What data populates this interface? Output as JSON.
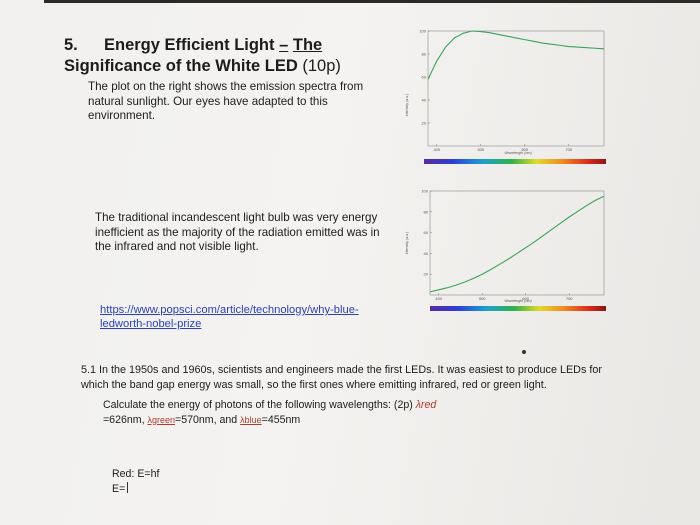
{
  "section": {
    "number": "5.",
    "title_plain": "Energy Efficient Light",
    "title_dash": "–",
    "title_underlined": "The",
    "title_line2_bold": "Significance of the White LED",
    "title_points": "(10p)"
  },
  "paragraph1": "The plot on the right shows the emission spectra from natural sunlight. Our eyes have adapted to this environment.",
  "paragraph2": "The traditional incandescent light bulb was very energy inefficient as the majority of the radiation emitted was in the infrared and not visible light.",
  "link": {
    "text": "https://www.popsci.com/article/technology/why-blue-ledworth-nobel-prize"
  },
  "question": {
    "text": "5.1 In the 1950s and 1960s, scientists and engineers made the first LEDs. It was easiest to produce LEDs for which the band gap energy was small, so the first ones where emitting infrared, red or green light.",
    "task_prefix": "Calculate the energy of photons of the following wavelengths: (2p)",
    "lambda_red": "λred",
    "red_value": "=626nm,",
    "lambda_green": "λgreen",
    "green_value": "=570nm",
    "and": ", and",
    "lambda_blue": "λblue",
    "blue_value": "=455nm"
  },
  "answer": {
    "line1": "Red: E=hf",
    "line2": "E="
  },
  "chart_data": [
    {
      "type": "line",
      "title": "",
      "xlabel": "Wavelength (nm)",
      "ylabel": "Intensity (a.u.)",
      "x": [
        380,
        400,
        420,
        440,
        460,
        480,
        500,
        520,
        540,
        560,
        580,
        600,
        620,
        640,
        660,
        680,
        700,
        720,
        740,
        760,
        780
      ],
      "y": [
        58,
        74,
        86,
        94,
        98,
        100,
        99.5,
        98.5,
        97,
        95.5,
        94,
        92.5,
        91,
        89.5,
        88.5,
        87.5,
        86.5,
        86,
        85.5,
        85,
        84.5
      ],
      "xlim": [
        380,
        780
      ],
      "ylim": [
        0,
        100
      ],
      "x_ticks": [
        "400",
        "500",
        "600",
        "700"
      ],
      "y_ticks": [
        "100",
        "80",
        "60",
        "40",
        "20"
      ],
      "line_color": "#3aa35a",
      "spectrum_bar": true
    },
    {
      "type": "line",
      "title": "",
      "xlabel": "Wavelength (nm)",
      "ylabel": "Intensity (a.u.)",
      "x": [
        380,
        400,
        420,
        440,
        460,
        480,
        500,
        520,
        540,
        560,
        580,
        600,
        620,
        640,
        660,
        680,
        700,
        720,
        740,
        760,
        780
      ],
      "y": [
        3,
        5,
        7,
        9.5,
        12.5,
        16,
        20,
        24.5,
        29.5,
        34.5,
        40,
        45.5,
        51,
        57,
        63,
        69,
        75,
        80.5,
        86,
        91,
        95
      ],
      "xlim": [
        380,
        780
      ],
      "ylim": [
        0,
        100
      ],
      "x_ticks": [
        "400",
        "500",
        "600",
        "700"
      ],
      "y_ticks": [
        "100",
        "80",
        "60",
        "40",
        "20"
      ],
      "line_color": "#3aa35a",
      "spectrum_bar": true
    }
  ]
}
